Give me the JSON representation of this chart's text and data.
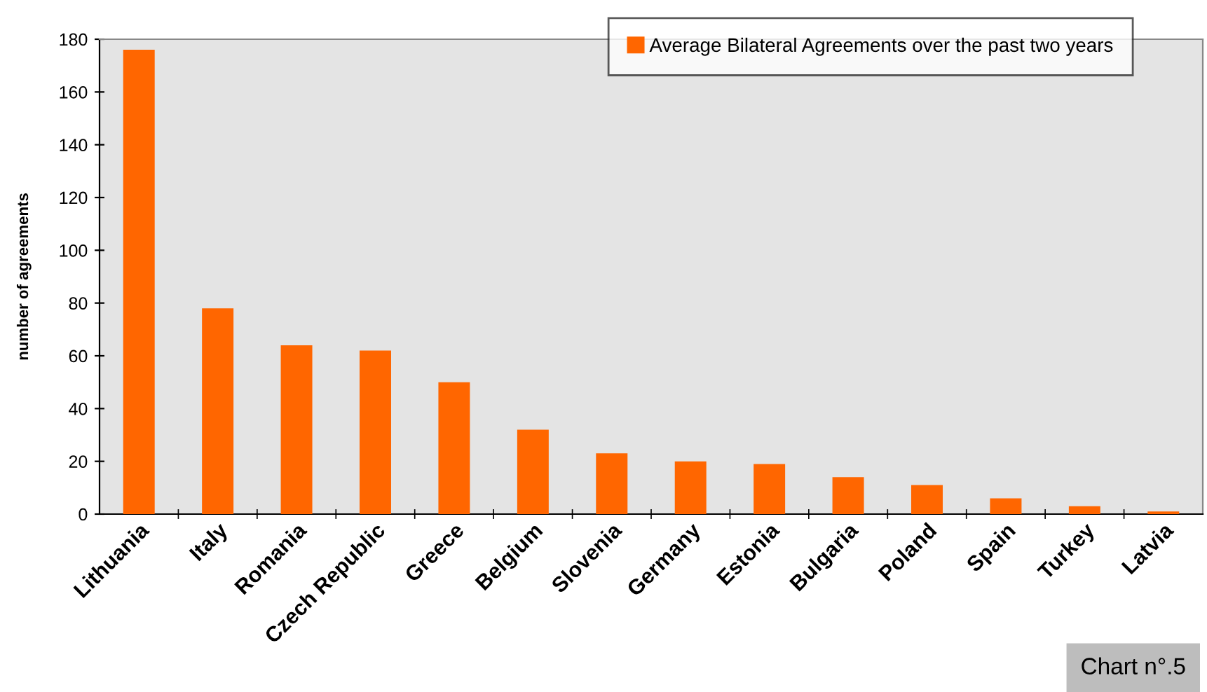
{
  "chart_data": {
    "type": "bar",
    "ylabel": "number of agreements",
    "categories": [
      "Lithuania",
      "Italy",
      "Romania",
      "Czech Republic",
      "Greece",
      "Belgium",
      "Slovenia",
      "Germany",
      "Estonia",
      "Bulgaria",
      "Poland",
      "Spain",
      "Turkey",
      "Latvia"
    ],
    "series": [
      {
        "name": "Average Bilateral Agreements over the past two years",
        "color": "#ff6600",
        "values": [
          176,
          78,
          64,
          62,
          50,
          32,
          23,
          20,
          19,
          14,
          11,
          6,
          3,
          1
        ]
      }
    ],
    "ylim": [
      0,
      180
    ],
    "yticks": [
      0,
      20,
      40,
      60,
      80,
      100,
      120,
      140,
      160,
      180
    ],
    "grid": false,
    "legend": "top right",
    "annotations": [
      "Chart n°.5"
    ]
  }
}
